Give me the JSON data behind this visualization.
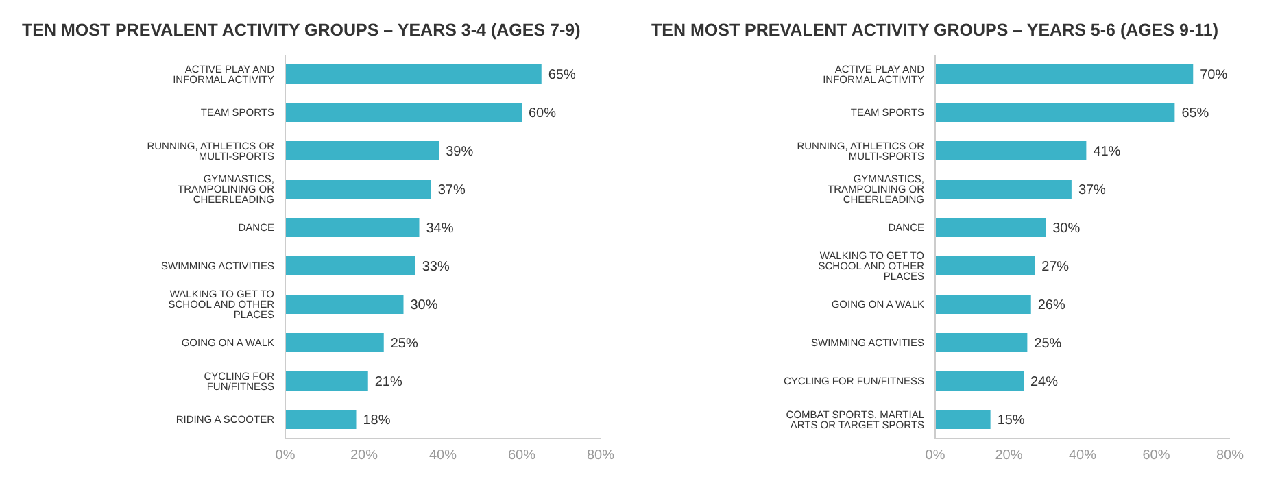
{
  "chart_data": [
    {
      "type": "bar",
      "orientation": "horizontal",
      "title": "TEN MOST PREVALENT ACTIVITY GROUPS – YEARS 3-4 (AGES 7-9)",
      "categories": [
        "ACTIVE PLAY AND INFORMAL ACTIVITY",
        "TEAM SPORTS",
        "RUNNING, ATHLETICS OR MULTI-SPORTS",
        "GYMNASTICS, TRAMPOLINING OR CHEERLEADING",
        "DANCE",
        "SWIMMING ACTIVITIES",
        "WALKING TO GET TO SCHOOL AND OTHER PLACES",
        "GOING ON A WALK",
        "CYCLING FOR FUN/FITNESS",
        "RIDING A SCOOTER"
      ],
      "values": [
        65,
        60,
        39,
        37,
        34,
        33,
        30,
        25,
        21,
        18
      ],
      "value_labels": [
        "65%",
        "60%",
        "39%",
        "37%",
        "34%",
        "33%",
        "30%",
        "25%",
        "21%",
        "18%"
      ],
      "color": "#3bb3c8",
      "xlim": [
        0,
        80
      ],
      "xticks": [
        {
          "value": 0,
          "label": "0%"
        },
        {
          "value": 20,
          "label": "20%"
        },
        {
          "value": 40,
          "label": "40%"
        },
        {
          "value": 60,
          "label": "60%"
        },
        {
          "value": 80,
          "label": "80%"
        }
      ]
    },
    {
      "type": "bar",
      "orientation": "horizontal",
      "title": "TEN MOST PREVALENT ACTIVITY GROUPS – YEARS 5-6 (AGES 9-11)",
      "categories": [
        "ACTIVE PLAY AND INFORMAL ACTIVITY",
        "TEAM SPORTS",
        "RUNNING, ATHLETICS OR MULTI-SPORTS",
        "GYMNASTICS, TRAMPOLINING OR CHEERLEADING",
        "DANCE",
        "WALKING TO GET TO SCHOOL AND OTHER PLACES",
        "GOING ON A WALK",
        "SWIMMING ACTIVITIES",
        "CYCLING FOR FUN/FITNESS",
        "COMBAT SPORTS, MARTIAL ARTS OR TARGET SPORTS"
      ],
      "values": [
        70,
        65,
        41,
        37,
        30,
        27,
        26,
        25,
        24,
        15
      ],
      "value_labels": [
        "70%",
        "65%",
        "41%",
        "37%",
        "30%",
        "27%",
        "26%",
        "25%",
        "24%",
        "15%"
      ],
      "color": "#3bb3c8",
      "xlim": [
        0,
        80
      ],
      "xticks": [
        {
          "value": 0,
          "label": "0%"
        },
        {
          "value": 20,
          "label": "20%"
        },
        {
          "value": 40,
          "label": "40%"
        },
        {
          "value": 60,
          "label": "60%"
        },
        {
          "value": 80,
          "label": "80%"
        }
      ]
    }
  ]
}
